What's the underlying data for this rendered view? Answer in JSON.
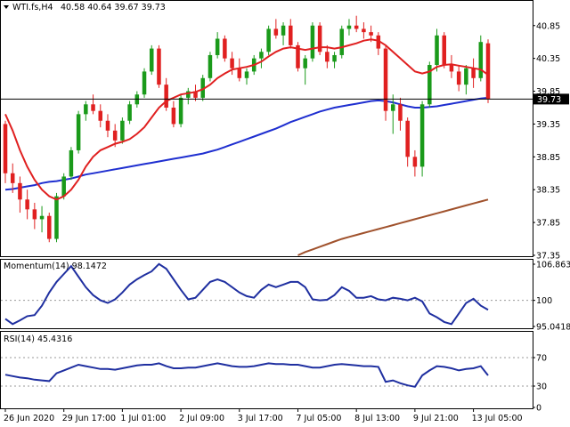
{
  "header": {
    "symbol": "WTI.fs,H4",
    "ohlc": "40.58 40.64 39.67 39.73"
  },
  "colors": {
    "bull": "#1a9a1a",
    "bear": "#e02020",
    "ma_fast": "#e02020",
    "ma_mid": "#1f2fd0",
    "ma_slow": "#a0522d",
    "osc": "#1f2fa0",
    "grid_dotted": "#999999"
  },
  "chart_data": [
    {
      "type": "candlestick",
      "name": "main",
      "ylim": [
        37.35,
        41.05
      ],
      "y_ticks": [
        40.85,
        40.35,
        39.85,
        39.35,
        38.85,
        38.35,
        37.85,
        37.35
      ],
      "y_tick_labels": [
        "40.85",
        "40.35",
        "39.85",
        "39.35",
        "38.85",
        "38.35",
        "37.85",
        "37.35"
      ],
      "current_price": 39.73,
      "current_price_label": "39.73",
      "candles": [
        [
          39.35,
          39.4,
          38.45,
          38.6
        ],
        [
          38.6,
          38.75,
          38.3,
          38.45
        ],
        [
          38.45,
          38.55,
          38.0,
          38.2
        ],
        [
          38.2,
          38.35,
          37.9,
          38.05
        ],
        [
          38.05,
          38.15,
          37.75,
          37.9
        ],
        [
          37.9,
          38.1,
          37.7,
          37.95
        ],
        [
          37.95,
          38.0,
          37.55,
          37.6
        ],
        [
          37.6,
          38.3,
          37.55,
          38.25
        ],
        [
          38.25,
          38.6,
          38.2,
          38.55
        ],
        [
          38.55,
          39.0,
          38.5,
          38.95
        ],
        [
          38.95,
          39.55,
          38.9,
          39.5
        ],
        [
          39.5,
          39.7,
          39.4,
          39.65
        ],
        [
          39.65,
          39.8,
          39.5,
          39.55
        ],
        [
          39.55,
          39.65,
          39.3,
          39.4
        ],
        [
          39.4,
          39.5,
          39.15,
          39.25
        ],
        [
          39.25,
          39.35,
          39.0,
          39.1
        ],
        [
          39.1,
          39.45,
          39.05,
          39.4
        ],
        [
          39.4,
          39.7,
          39.35,
          39.65
        ],
        [
          39.65,
          39.85,
          39.6,
          39.8
        ],
        [
          39.8,
          40.2,
          39.75,
          40.15
        ],
        [
          40.15,
          40.55,
          40.1,
          40.5
        ],
        [
          40.5,
          40.55,
          39.9,
          39.95
        ],
        [
          39.95,
          40.05,
          39.55,
          39.6
        ],
        [
          39.6,
          39.7,
          39.3,
          39.35
        ],
        [
          39.35,
          39.8,
          39.3,
          39.75
        ],
        [
          39.75,
          39.9,
          39.65,
          39.85
        ],
        [
          39.85,
          39.95,
          39.7,
          39.75
        ],
        [
          39.75,
          40.1,
          39.7,
          40.05
        ],
        [
          40.05,
          40.45,
          40.0,
          40.4
        ],
        [
          40.4,
          40.75,
          40.35,
          40.65
        ],
        [
          40.65,
          40.7,
          40.3,
          40.35
        ],
        [
          40.35,
          40.45,
          40.1,
          40.2
        ],
        [
          40.2,
          40.35,
          40.0,
          40.05
        ],
        [
          40.05,
          40.2,
          39.95,
          40.15
        ],
        [
          40.15,
          40.4,
          40.1,
          40.35
        ],
        [
          40.35,
          40.5,
          40.2,
          40.45
        ],
        [
          40.45,
          40.85,
          40.4,
          40.8
        ],
        [
          40.8,
          40.95,
          40.65,
          40.7
        ],
        [
          40.7,
          40.9,
          40.55,
          40.85
        ],
        [
          40.85,
          40.95,
          40.5,
          40.55
        ],
        [
          40.55,
          40.6,
          40.15,
          40.2
        ],
        [
          40.2,
          40.4,
          39.95,
          40.35
        ],
        [
          40.35,
          40.9,
          40.3,
          40.85
        ],
        [
          40.85,
          40.9,
          40.4,
          40.45
        ],
        [
          40.45,
          40.55,
          40.2,
          40.3
        ],
        [
          40.3,
          40.45,
          40.2,
          40.4
        ],
        [
          40.4,
          40.85,
          40.35,
          40.8
        ],
        [
          40.8,
          40.95,
          40.7,
          40.85
        ],
        [
          40.85,
          41.0,
          40.75,
          40.8
        ],
        [
          40.8,
          40.9,
          40.65,
          40.75
        ],
        [
          40.75,
          40.85,
          40.6,
          40.7
        ],
        [
          40.7,
          40.75,
          40.4,
          40.5
        ],
        [
          40.5,
          40.55,
          39.4,
          39.55
        ],
        [
          39.55,
          39.8,
          39.2,
          39.65
        ],
        [
          39.65,
          39.75,
          39.25,
          39.4
        ],
        [
          39.4,
          39.45,
          38.7,
          38.85
        ],
        [
          38.85,
          38.95,
          38.55,
          38.7
        ],
        [
          38.7,
          39.7,
          38.55,
          39.65
        ],
        [
          39.65,
          40.3,
          39.6,
          40.25
        ],
        [
          40.25,
          40.8,
          40.15,
          40.7
        ],
        [
          40.7,
          40.75,
          40.2,
          40.25
        ],
        [
          40.25,
          40.4,
          40.05,
          40.15
        ],
        [
          40.15,
          40.25,
          39.85,
          39.95
        ],
        [
          39.95,
          40.25,
          39.8,
          40.2
        ],
        [
          40.2,
          40.35,
          39.9,
          40.05
        ],
        [
          40.05,
          40.7,
          40.0,
          40.6
        ],
        [
          40.58,
          40.64,
          39.67,
          39.73
        ]
      ],
      "ma_fast": [
        39.5,
        39.25,
        38.95,
        38.7,
        38.5,
        38.35,
        38.25,
        38.2,
        38.25,
        38.35,
        38.5,
        38.7,
        38.85,
        38.95,
        39.0,
        39.05,
        39.08,
        39.12,
        39.2,
        39.3,
        39.45,
        39.6,
        39.7,
        39.75,
        39.8,
        39.82,
        39.84,
        39.88,
        39.95,
        40.05,
        40.12,
        40.18,
        40.2,
        40.22,
        40.25,
        40.3,
        40.38,
        40.45,
        40.5,
        40.52,
        40.5,
        40.48,
        40.5,
        40.52,
        40.52,
        40.5,
        40.52,
        40.55,
        40.58,
        40.62,
        40.64,
        40.62,
        40.55,
        40.45,
        40.35,
        40.25,
        40.15,
        40.12,
        40.15,
        40.22,
        40.25,
        40.26,
        40.24,
        40.22,
        40.2,
        40.18,
        40.1
      ],
      "ma_mid": [
        38.35,
        38.36,
        38.38,
        38.4,
        38.42,
        38.45,
        38.47,
        38.48,
        38.5,
        38.52,
        38.55,
        38.58,
        38.6,
        38.62,
        38.64,
        38.66,
        38.68,
        38.7,
        38.72,
        38.74,
        38.76,
        38.78,
        38.8,
        38.82,
        38.84,
        38.86,
        38.88,
        38.9,
        38.93,
        38.96,
        39.0,
        39.04,
        39.08,
        39.12,
        39.16,
        39.2,
        39.24,
        39.28,
        39.33,
        39.38,
        39.42,
        39.46,
        39.5,
        39.54,
        39.57,
        39.6,
        39.62,
        39.64,
        39.66,
        39.68,
        39.7,
        39.71,
        39.7,
        39.68,
        39.65,
        39.62,
        39.6,
        39.6,
        39.61,
        39.62,
        39.64,
        39.66,
        39.68,
        39.7,
        39.72,
        39.74,
        39.75
      ],
      "ma_slow": [
        null,
        null,
        null,
        null,
        null,
        null,
        null,
        null,
        null,
        null,
        null,
        null,
        null,
        null,
        null,
        null,
        null,
        null,
        null,
        null,
        null,
        null,
        null,
        null,
        null,
        null,
        null,
        null,
        null,
        null,
        null,
        null,
        null,
        null,
        null,
        null,
        null,
        null,
        null,
        null,
        37.35,
        37.4,
        37.44,
        37.48,
        37.52,
        37.56,
        37.6,
        37.63,
        37.66,
        37.69,
        37.72,
        37.75,
        37.78,
        37.81,
        37.84,
        37.87,
        37.9,
        37.93,
        37.96,
        37.99,
        38.02,
        38.05,
        38.08,
        38.11,
        38.14,
        38.17,
        38.2
      ]
    },
    {
      "type": "line",
      "name": "momentum",
      "title": "Momentum(14) 98.1472",
      "ylim": [
        95.0418,
        106.8631
      ],
      "y_ticks": [
        106.8631,
        100,
        95.0418
      ],
      "y_tick_labels": [
        "106.8631",
        "100",
        "95.0418"
      ],
      "dotted_level": 100,
      "values": [
        96.5,
        95.5,
        96.2,
        97.0,
        97.2,
        99.0,
        101.5,
        103.5,
        105.0,
        106.5,
        104.5,
        102.5,
        101.0,
        100.0,
        99.5,
        100.2,
        101.5,
        103.0,
        104.0,
        104.8,
        105.5,
        106.9,
        106.0,
        104.0,
        102.0,
        100.2,
        100.5,
        102.0,
        103.5,
        104.0,
        103.5,
        102.5,
        101.5,
        100.8,
        100.5,
        102.0,
        103.0,
        102.5,
        103.0,
        103.5,
        103.5,
        102.5,
        100.2,
        100.0,
        100.1,
        101.0,
        102.5,
        101.8,
        100.5,
        100.5,
        100.8,
        100.2,
        100.0,
        100.5,
        100.3,
        100.0,
        100.5,
        99.8,
        97.5,
        96.8,
        95.9,
        95.5,
        97.5,
        99.5,
        100.3,
        99.0,
        98.2
      ]
    },
    {
      "type": "line",
      "name": "rsi",
      "title": "RSI(14) 45.4316",
      "ylim": [
        0,
        100
      ],
      "y_ticks": [
        70,
        30,
        0
      ],
      "y_tick_labels": [
        "70",
        "30",
        "0"
      ],
      "dotted_levels": [
        70,
        30
      ],
      "values": [
        46,
        44,
        42,
        41,
        39,
        38,
        37,
        48,
        52,
        56,
        60,
        58,
        56,
        54,
        54,
        53,
        55,
        57,
        59,
        60,
        60,
        62,
        58,
        55,
        55,
        56,
        56,
        58,
        60,
        62,
        60,
        58,
        57,
        57,
        58,
        60,
        62,
        61,
        61,
        60,
        60,
        58,
        56,
        56,
        58,
        60,
        61,
        60,
        59,
        58,
        58,
        57,
        36,
        38,
        34,
        31,
        29,
        45,
        52,
        58,
        57,
        55,
        52,
        54,
        55,
        58,
        45
      ]
    }
  ],
  "x_axis": {
    "labels": [
      "26 Jun 2020",
      "29 Jun 17:00",
      "1 Jul 01:00",
      "2 Jul 09:00",
      "3 Jul 17:00",
      "7 Jul 05:00",
      "8 Jul 13:00",
      "9 Jul 21:00",
      "13 Jul 05:00"
    ],
    "label_candle_index": [
      0,
      8,
      16,
      24,
      32,
      40,
      48,
      56,
      64
    ]
  }
}
